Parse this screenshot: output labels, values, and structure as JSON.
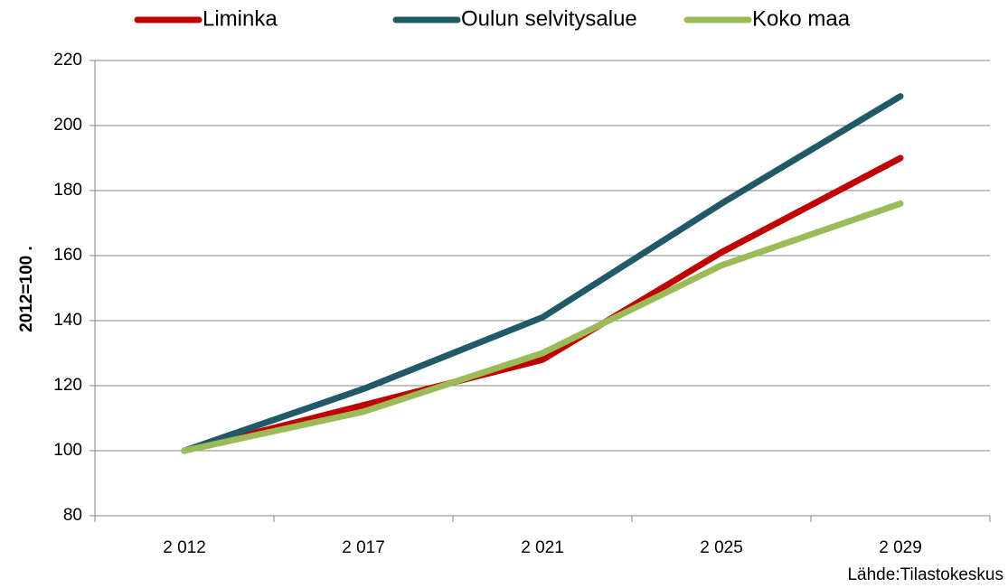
{
  "chart_data": {
    "type": "line",
    "y_label": "2012=100 .",
    "source": "Lähde:Tilastokeskus",
    "categories": [
      "2 012",
      "2 017",
      "2 021",
      "2 025",
      "2 029"
    ],
    "series": [
      {
        "name": "Liminka",
        "color": "#c00000",
        "values": [
          100,
          114,
          128,
          161,
          190
        ]
      },
      {
        "name": "Oulun selvitysalue",
        "color": "#215968",
        "values": [
          100,
          119,
          141,
          176,
          209
        ]
      },
      {
        "name": "Koko maa",
        "color": "#9bbb59",
        "values": [
          100,
          112,
          130,
          157,
          176
        ]
      }
    ],
    "ylim": [
      80,
      220
    ],
    "yticks": [
      80,
      100,
      120,
      140,
      160,
      180,
      200,
      220
    ],
    "grid": true,
    "legend": "top"
  }
}
